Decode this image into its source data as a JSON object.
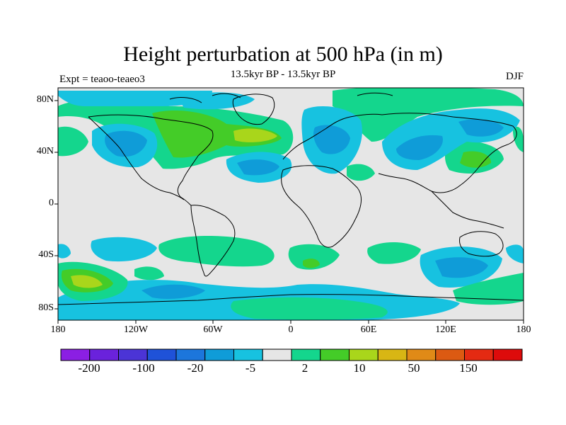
{
  "title": "Height perturbation at 500 hPa (in m)",
  "subtitle": "13.5kyr BP - 13.5kyr BP",
  "left_label": "Expt = teaoo-teaeo3",
  "right_label": "DJF",
  "lat_labels": [
    "80N",
    "40N",
    "0",
    "40S",
    "80S"
  ],
  "lon_labels": [
    "180",
    "120W",
    "60W",
    "0",
    "60E",
    "120E",
    "180"
  ],
  "colorbar": {
    "colors": [
      "#8b1fe3",
      "#6a22dc",
      "#4b34d6",
      "#1f52d8",
      "#1c76dc",
      "#0f9cd8",
      "#17c2e0",
      "#e6e6e6",
      "#14d68d",
      "#44cc28",
      "#a9d61b",
      "#d8b614",
      "#e08a17",
      "#dc5a12",
      "#e42a12",
      "#dd0b0b"
    ],
    "labels": [
      "-200",
      "-100",
      "-20",
      "-5",
      "2",
      "10",
      "50",
      "150"
    ]
  }
}
